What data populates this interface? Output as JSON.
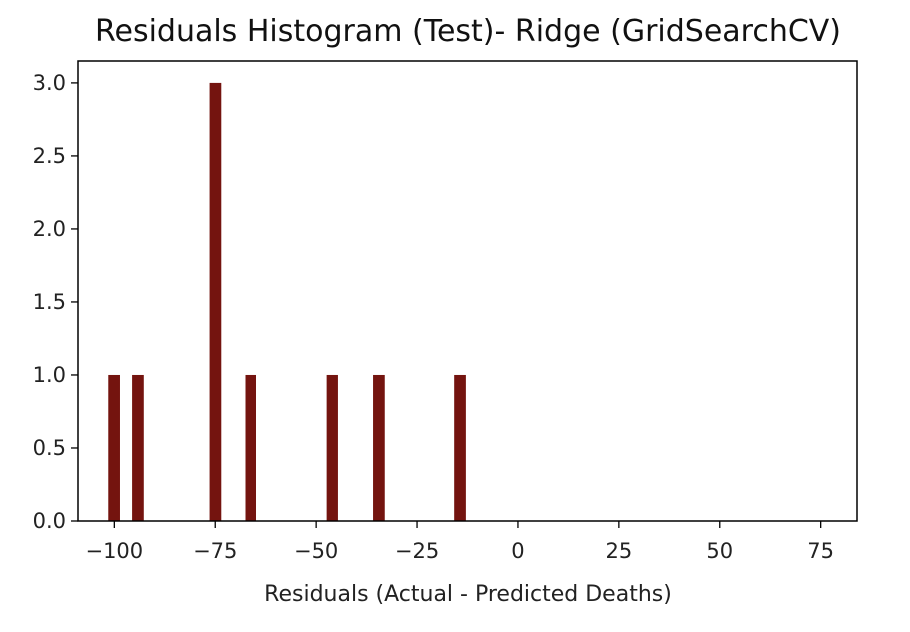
{
  "chart_data": {
    "type": "bar",
    "title": "Residuals Histogram (Test)- Ridge (GridSearchCV)",
    "xlabel": "Residuals (Actual - Predicted Deaths)",
    "ylabel": "",
    "xlim": [
      -109,
      84
    ],
    "ylim": [
      0,
      3.15
    ],
    "bar_color": "#74140f",
    "grid": false,
    "x_ticks": [
      -100,
      -75,
      -50,
      -25,
      0,
      25,
      50,
      75
    ],
    "x_tick_labels": [
      "−100",
      "−75",
      "−50",
      "−25",
      "0",
      "25",
      "50",
      "75"
    ],
    "y_ticks": [
      0.0,
      0.5,
      1.0,
      1.5,
      2.0,
      2.5,
      3.0
    ],
    "y_tick_labels": [
      "0.0",
      "0.5",
      "1.0",
      "1.5",
      "2.0",
      "2.5",
      "3.0"
    ],
    "bins": [
      {
        "x0": -101.5,
        "x1": -98.6,
        "count": 1
      },
      {
        "x0": -95.6,
        "x1": -92.7,
        "count": 1
      },
      {
        "x0": -76.4,
        "x1": -73.5,
        "count": 3
      },
      {
        "x0": -67.5,
        "x1": -64.9,
        "count": 1
      },
      {
        "x0": -47.4,
        "x1": -44.6,
        "count": 1
      },
      {
        "x0": -35.9,
        "x1": -33.0,
        "count": 1
      },
      {
        "x0": -15.8,
        "x1": -12.9,
        "count": 1
      }
    ]
  }
}
